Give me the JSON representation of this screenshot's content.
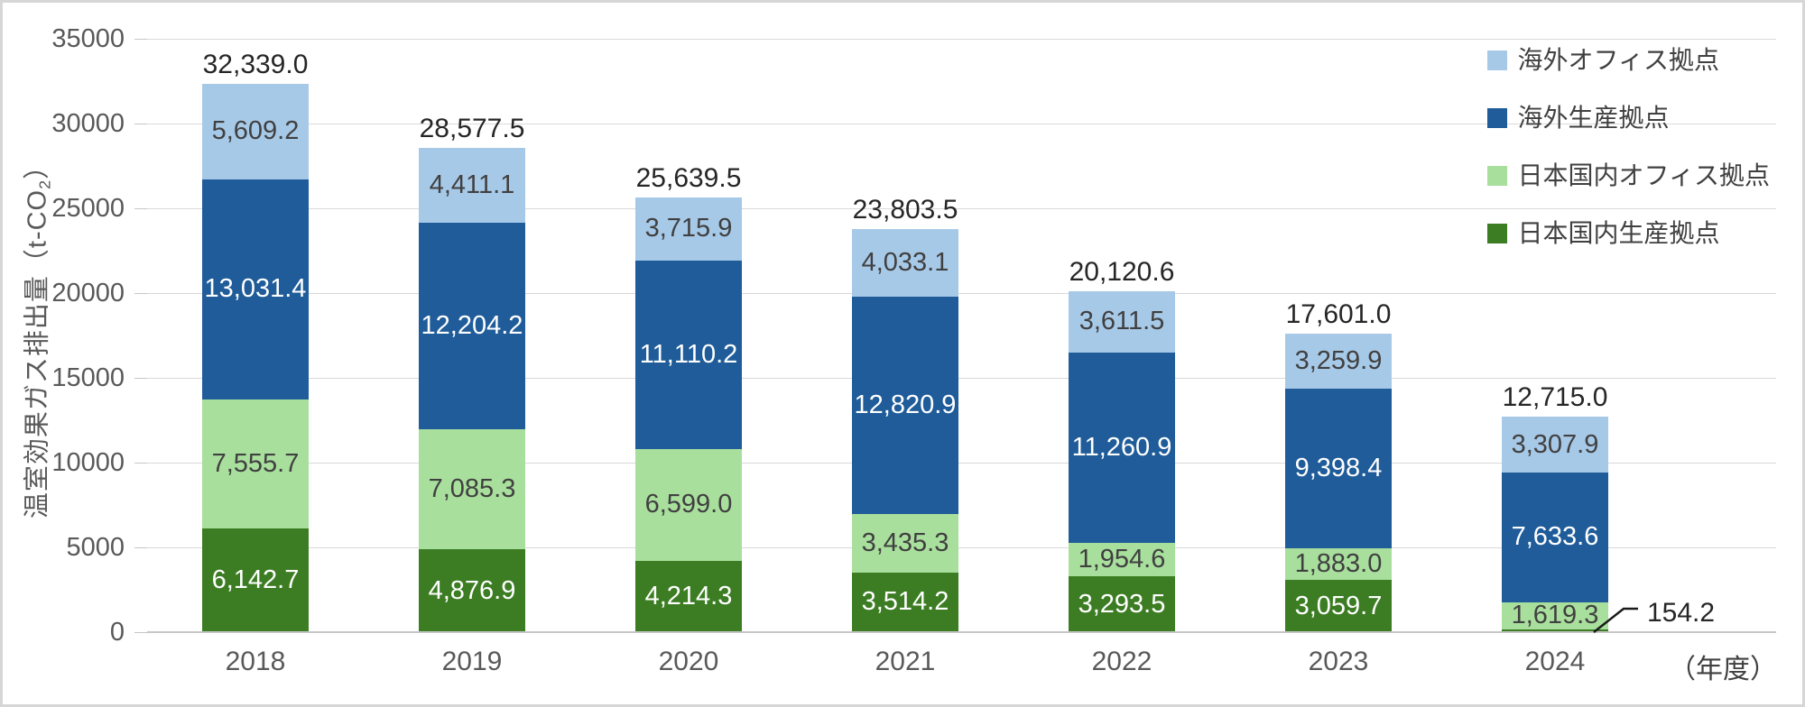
{
  "chart_data": {
    "type": "bar",
    "stacked": true,
    "categories": [
      "2018",
      "2019",
      "2020",
      "2021",
      "2022",
      "2023",
      "2024"
    ],
    "series": [
      {
        "name": "日本国内生産拠点",
        "color": "#3C7D23",
        "label_color": "#FFFFFF",
        "values": [
          6142.7,
          4876.9,
          4214.3,
          3514.2,
          3293.5,
          3059.7,
          154.2
        ],
        "labels": [
          "6,142.7",
          "4,876.9",
          "4,214.3",
          "3,514.2",
          "3,293.5",
          "3,059.7",
          "154.2"
        ]
      },
      {
        "name": "日本国内オフィス拠点",
        "color": "#A9DF9D",
        "label_color": "#404040",
        "values": [
          7555.7,
          7085.3,
          6599.0,
          3435.3,
          1954.6,
          1883.0,
          1619.3
        ],
        "labels": [
          "7,555.7",
          "7,085.3",
          "6,599.0",
          "3,435.3",
          "1,954.6",
          "1,883.0",
          "1,619.3"
        ]
      },
      {
        "name": "海外生産拠点",
        "color": "#1F5C99",
        "label_color": "#FFFFFF",
        "values": [
          13031.4,
          12204.2,
          11110.2,
          12820.9,
          11260.9,
          9398.4,
          7633.6
        ],
        "labels": [
          "13,031.4",
          "12,204.2",
          "11,110.2",
          "12,820.9",
          "11,260.9",
          "9,398.4",
          "7,633.6"
        ]
      },
      {
        "name": "海外オフィス拠点",
        "color": "#A7C9E8",
        "label_color": "#404040",
        "values": [
          5609.2,
          4411.1,
          3715.9,
          4033.1,
          3611.5,
          3259.9,
          3307.9
        ],
        "labels": [
          "5,609.2",
          "4,411.1",
          "3,715.9",
          "4,033.1",
          "3,611.5",
          "3,259.9",
          "3,307.9"
        ]
      }
    ],
    "totals": [
      "32,339.0",
      "28,577.5",
      "25,639.5",
      "23,803.5",
      "20,120.6",
      "17,601.0",
      "12,715.0"
    ],
    "legend": [
      "海外オフィス拠点",
      "海外生産拠点",
      "日本国内オフィス拠点",
      "日本国内生産拠点"
    ],
    "legend_position": "top-right",
    "ylabel": "温室効果ガス排出量（t-CO2）",
    "ylabel_parts": {
      "pre": "温室効果ガス排出量（t-CO",
      "sub": "2",
      "post": "）"
    },
    "xlabel": "（年度）",
    "ylim": [
      0,
      35000
    ],
    "yticks": [
      0,
      5000,
      10000,
      15000,
      20000,
      25000,
      30000,
      35000
    ],
    "grid": true,
    "callout": {
      "category": "2024",
      "series": "日本国内生産拠点",
      "label": "154.2"
    },
    "colors": {
      "gridline": "#D9D9D9",
      "axis_line": "#C6C6C6",
      "tick_label": "#595959",
      "total_label": "#262626"
    }
  }
}
